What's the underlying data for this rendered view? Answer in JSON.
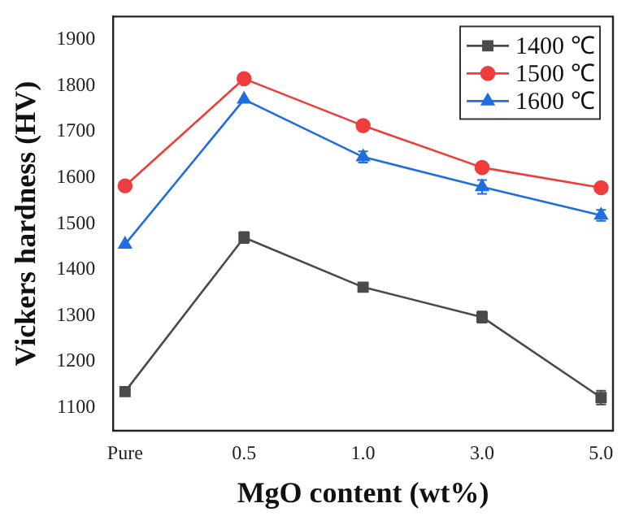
{
  "chart_data": {
    "type": "line",
    "xlabel": "MgO content (wt%)",
    "ylabel": "Vickers hardness (HV)",
    "categories": [
      "Pure",
      "0.5",
      "1.0",
      "3.0",
      "5.0"
    ],
    "series": [
      {
        "name": "1400 ℃",
        "color": "#4a4a4a",
        "marker": "square",
        "values": [
          1135,
          1470,
          1362,
          1297,
          1122
        ],
        "errors": [
          null,
          12,
          null,
          12,
          15
        ]
      },
      {
        "name": "1500 ℃",
        "color": "#f03c3c",
        "marker": "circle",
        "values": [
          1582,
          1815,
          1713,
          1622,
          1578
        ],
        "errors": [
          null,
          null,
          null,
          null,
          null
        ]
      },
      {
        "name": "1600 ℃",
        "color": "#1e6ee0",
        "marker": "triangle",
        "values": [
          1455,
          1770,
          1645,
          1580,
          1518
        ],
        "errors": [
          null,
          null,
          12,
          15,
          12
        ]
      }
    ],
    "ylim": [
      1050,
      1950
    ],
    "yticks": [
      1100,
      1200,
      1300,
      1400,
      1500,
      1600,
      1700,
      1800,
      1900
    ],
    "legend": "top right",
    "grid": false
  }
}
